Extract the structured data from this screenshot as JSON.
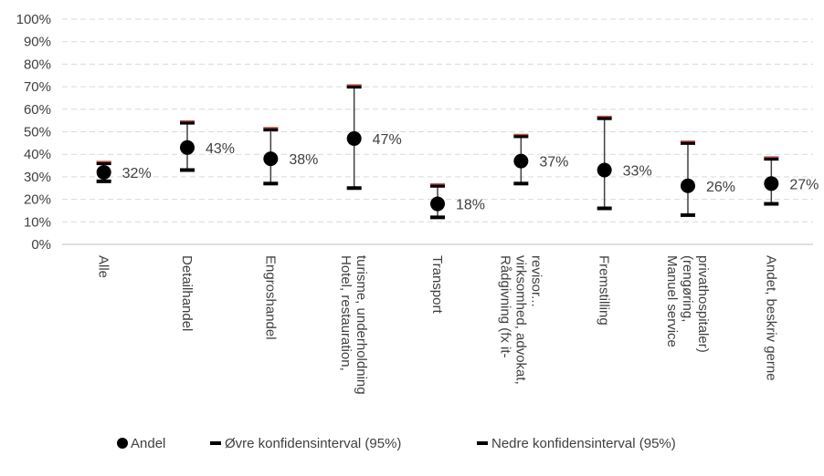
{
  "chart_data": {
    "type": "scatter",
    "categories": [
      [
        "Alle"
      ],
      [
        "Detailhandel"
      ],
      [
        "Engroshandel"
      ],
      [
        "Hotel, restauration,",
        "turisme, underholdning"
      ],
      [
        "Transport"
      ],
      [
        "Rådgivning (fx it-",
        "virksomhed, advokat,",
        "revisor..."
      ],
      [
        "Fremstilling"
      ],
      [
        "Manuel service",
        "(rengøring,",
        "privathospitaler)"
      ],
      [
        "Andet, beskriv gerne"
      ]
    ],
    "series": [
      {
        "name": "Andel",
        "values": [
          32,
          43,
          38,
          47,
          18,
          37,
          33,
          26,
          27
        ]
      },
      {
        "name": "Øvre konfidensinterval (95%)",
        "values": [
          36,
          54,
          51,
          70,
          26,
          48,
          56,
          45,
          38
        ]
      },
      {
        "name": "Nedre konfidensinterval (95%)",
        "values": [
          28,
          33,
          27,
          25,
          12,
          27,
          16,
          13,
          18
        ]
      }
    ],
    "data_labels": [
      "32%",
      "43%",
      "38%",
      "47%",
      "18%",
      "37%",
      "33%",
      "26%",
      "27%"
    ],
    "y_ticks": [
      "0%",
      "10%",
      "20%",
      "30%",
      "40%",
      "50%",
      "60%",
      "70%",
      "80%",
      "90%",
      "100%"
    ],
    "ylim": [
      0,
      100
    ],
    "grid": true,
    "legend_position": "bottom",
    "colors": {
      "point": "#000000",
      "upper_cap": "#c0504d",
      "whisker": "#404040",
      "grid": "#d9d9d9",
      "text": "#404040"
    }
  }
}
